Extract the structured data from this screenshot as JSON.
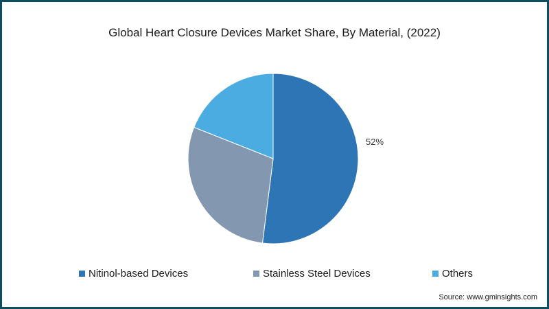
{
  "title": "Global Heart Closure Devices Market Share, By Material, (2022)",
  "source": "Source: www.gminsights.com",
  "chart_data": {
    "type": "pie",
    "title": "Global Heart Closure Devices Market Share, By Material, (2022)",
    "slices": [
      {
        "name": "Nitinol-based Devices",
        "value": 52,
        "label": "52%",
        "color": "#2e75b6"
      },
      {
        "name": "Stainless Steel Devices",
        "value": 29,
        "label": "",
        "color": "#8497b0"
      },
      {
        "name": "Others",
        "value": 19,
        "label": "",
        "color": "#4aace0"
      }
    ],
    "start": "12 o'clock",
    "direction": "clockwise",
    "legend_position": "bottom"
  }
}
